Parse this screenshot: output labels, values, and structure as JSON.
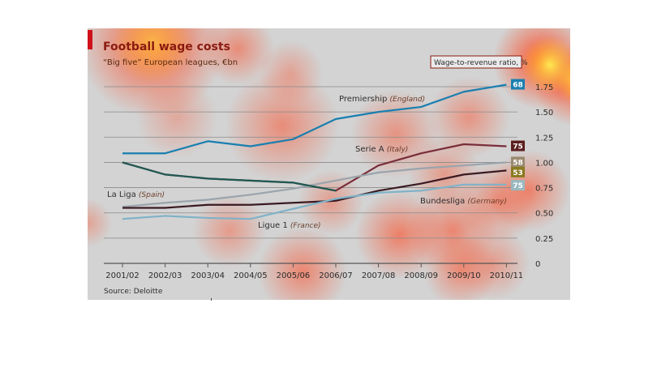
{
  "chart_data": {
    "type": "line",
    "title": "Football wage costs",
    "subtitle": "“Big five” European leagues, €bn",
    "source": "Source: Deloitte",
    "x": [
      "2001/02",
      "2002/03",
      "2003/04",
      "2004/05",
      "2005/06",
      "2006/07",
      "2007/08",
      "2008/09",
      "2009/10",
      "2010/11"
    ],
    "ylim": [
      0,
      1.75
    ],
    "yticks": [
      "0",
      "0.25",
      "0.50",
      "0.75",
      "1.00",
      "1.25",
      "1.50",
      "1.75"
    ],
    "ytick_values": [
      0,
      0.25,
      0.5,
      0.75,
      1.0,
      1.25,
      1.5,
      1.75
    ],
    "series": [
      {
        "name": "Premiership",
        "country": "(England)",
        "color": "#1a7fb0",
        "values": [
          1.09,
          1.09,
          1.21,
          1.16,
          1.23,
          1.43,
          1.5,
          1.55,
          1.7,
          1.77
        ],
        "ratio": "68",
        "ratio_color": "#1a7fb0"
      },
      {
        "name": "Serie A",
        "country": "(Italy)",
        "color": "#7a2e3a",
        "values": [
          1.0,
          0.88,
          0.84,
          0.82,
          0.8,
          0.72,
          0.97,
          1.09,
          1.18,
          1.16
        ],
        "ratio": "75",
        "ratio_color": "#5b1e1e"
      },
      {
        "name": "Bundesliga",
        "country": "(Germany)",
        "color": "#9aa4ac",
        "values": [
          0.56,
          0.6,
          0.63,
          0.68,
          0.74,
          0.82,
          0.9,
          0.94,
          0.97,
          1.0
        ],
        "ratio": "58",
        "ratio_color": "#9a8a70"
      },
      {
        "name": "La Liga",
        "country": "(Spain)",
        "color": "#3a1a22",
        "values": [
          0.55,
          0.55,
          0.58,
          0.58,
          0.6,
          0.62,
          0.72,
          0.79,
          0.88,
          0.92
        ],
        "ratio": "53",
        "ratio_color": "#8a7a20"
      },
      {
        "name": "Ligue 1",
        "country": "(France)",
        "color": "#7fb2c8",
        "values": [
          0.44,
          0.47,
          0.45,
          0.44,
          0.54,
          0.64,
          0.7,
          0.72,
          0.78,
          0.78
        ],
        "ratio": "75",
        "ratio_color": "#9ab8c0"
      },
      {
        "name": "",
        "country": "",
        "color": "#1e5a52",
        "values": [
          1.0,
          0.88,
          0.84,
          0.82,
          0.8,
          0.72,
          0.72,
          0.72,
          0.72,
          0.72
        ],
        "hidden_tail": true
      }
    ],
    "ratio_box_title": "Wage-to-revenue ratio, %",
    "grid": true
  }
}
